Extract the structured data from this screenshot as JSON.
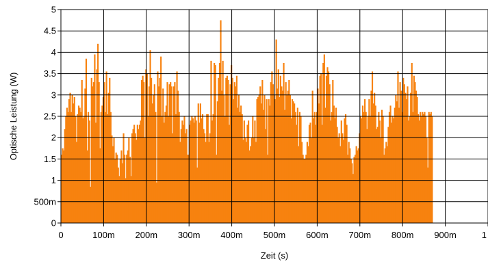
{
  "chart_data": {
    "type": "bar",
    "title": "",
    "xlabel": "Zeit (s)",
    "ylabel": "Optische Leistung (W)",
    "xlim": [
      0,
      1
    ],
    "ylim": [
      0,
      5
    ],
    "x_ticks": [
      {
        "value": 0,
        "label": "0"
      },
      {
        "value": 0.1,
        "label": "100m"
      },
      {
        "value": 0.2,
        "label": "200m"
      },
      {
        "value": 0.3,
        "label": "300m"
      },
      {
        "value": 0.4,
        "label": "400m"
      },
      {
        "value": 0.5,
        "label": "500m"
      },
      {
        "value": 0.6,
        "label": "600m"
      },
      {
        "value": 0.7,
        "label": "700m"
      },
      {
        "value": 0.8,
        "label": "800m"
      },
      {
        "value": 0.9,
        "label": "900m"
      },
      {
        "value": 1.0,
        "label": "1"
      }
    ],
    "y_ticks": [
      {
        "value": 0,
        "label": "0"
      },
      {
        "value": 0.5,
        "label": "500m"
      },
      {
        "value": 1,
        "label": "1"
      },
      {
        "value": 1.5,
        "label": "1.5"
      },
      {
        "value": 2,
        "label": "2"
      },
      {
        "value": 2.5,
        "label": "2.5"
      },
      {
        "value": 3,
        "label": "3"
      },
      {
        "value": 3.5,
        "label": "3.5"
      },
      {
        "value": 4,
        "label": "4"
      },
      {
        "value": 4.5,
        "label": "4.5"
      },
      {
        "value": 5,
        "label": "5"
      }
    ],
    "grid": true,
    "bar_color": "#f7820f",
    "grid_color": "#000000",
    "x_step": 0.0025,
    "values": [
      1.6,
      1.75,
      1.7,
      2.2,
      2.5,
      2.7,
      2.6,
      2.9,
      3.05,
      2.6,
      3.0,
      2.8,
      2.95,
      2.5,
      1.9,
      2.55,
      2.75,
      2.7,
      2.6,
      3.35,
      2.45,
      2.5,
      3.15,
      3.85,
      1.7,
      2.6,
      2.4,
      0.85,
      3.4,
      3.2,
      3.3,
      3.95,
      2.35,
      3.6,
      4.2,
      3.3,
      1.75,
      2.6,
      2.75,
      2.95,
      3.3,
      2.6,
      3.55,
      2.55,
      3.05,
      3.4,
      2.6,
      2.05,
      1.8,
      2.0,
      1.5,
      1.65,
      1.6,
      1.3,
      1.1,
      1.5,
      1.7,
      1.4,
      2.1,
      1.6,
      1.05,
      1.6,
      1.7,
      2.0,
      1.55,
      1.1,
      2.1,
      2.2,
      2.3,
      2.1,
      1.95,
      2.3,
      2.2,
      2.3,
      2.4,
      3.35,
      3.45,
      3.3,
      2.0,
      3.6,
      3.5,
      2.5,
      3.2,
      4.05,
      3.4,
      2.8,
      3.0,
      3.25,
      2.6,
      0.95,
      3.55,
      3.2,
      3.4,
      3.9,
      2.5,
      3.15,
      2.35,
      2.6,
      2.75,
      3.3,
      2.5,
      3.25,
      3.3,
      3.2,
      2.1,
      3.2,
      3.3,
      2.55,
      3.55,
      3.1,
      2.6,
      1.9,
      2.2,
      2.4,
      2.3,
      2.5,
      2.1,
      2.2,
      1.6,
      1.6,
      2.3,
      2.4,
      2.5,
      2.45,
      2.35,
      2.5,
      2.4,
      1.3,
      2.8,
      2.35,
      2.8,
      2.45,
      2.55,
      2.2,
      2.1,
      1.9,
      2.55,
      2.55,
      1.9,
      2.1,
      3.8,
      2.4,
      2.55,
      3.75,
      3.7,
      1.6,
      2.85,
      3.4,
      3.75,
      4.75,
      3.1,
      3.8,
      3.0,
      2.5,
      3.4,
      3.45,
      3.35,
      2.3,
      3.25,
      3.7,
      3.4,
      2.9,
      3.3,
      3.2,
      3.45,
      2.7,
      3.0,
      2.6,
      2.75,
      2.55,
      1.95,
      2.4,
      2.0,
      1.9,
      2.3,
      2.4,
      1.7,
      1.8,
      2.0,
      2.5,
      2.0,
      2.4,
      1.9,
      2.9,
      2.95,
      3.0,
      3.2,
      2.8,
      3.35,
      2.65,
      3.0,
      2.2,
      2.9,
      1.6,
      2.9,
      2.75,
      3.3,
      3.55,
      3.25,
      3.0,
      2.9,
      4.3,
      3.15,
      3.6,
      2.95,
      3.45,
      3.2,
      3.1,
      3.75,
      2.65,
      3.3,
      3.0,
      3.1,
      3.35,
      3.0,
      2.45,
      2.9,
      2.85,
      2.8,
      2.6,
      2.3,
      2.7,
      1.8,
      2.6,
      2.5,
      1.9,
      1.6,
      1.5,
      1.5,
      1.6,
      1.9,
      1.8,
      2.3,
      2.35,
      2.0,
      3.1,
      2.45,
      2.6,
      2.3,
      2.6,
      3.15,
      2.8,
      3.45,
      3.5,
      2.3,
      3.75,
      3.95,
      2.7,
      3.45,
      3.65,
      3.55,
      3.25,
      2.4,
      2.6,
      3.35,
      2.75,
      2.45,
      2.7,
      2.25,
      2.0,
      2.1,
      1.8,
      2.4,
      2.1,
      1.95,
      2.45,
      2.55,
      2.3,
      1.6,
      1.9,
      1.75,
      1.5,
      1.4,
      1.15,
      1.55,
      1.6,
      1.8,
      1.7,
      1.75,
      2.1,
      2.5,
      2.45,
      2.75,
      2.6,
      2.9,
      2.6,
      2.2,
      2.5,
      2.9,
      2.5,
      3.1,
      3.55,
      2.8,
      3.05,
      2.75,
      2.2,
      2.25,
      2.6,
      2.4,
      2.0,
      2.65,
      2.5,
      1.6,
      1.75,
      1.9,
      1.8,
      2.25,
      2.6,
      2.75,
      2.35,
      2.5,
      2.45,
      2.7,
      3.0,
      2.85,
      3.55,
      2.7,
      3.3,
      3.1,
      2.6,
      3.4,
      3.25,
      3.05,
      2.9,
      3.2,
      2.4,
      2.5,
      3.05,
      3.75,
      2.6,
      3.45,
      3.3,
      3.1,
      2.95,
      2.55,
      2.4,
      2.6,
      2.5,
      2.6,
      2.55,
      2.6,
      2.5,
      2.0,
      1.3,
      2.6,
      2.55,
      2.6,
      2.5
    ]
  }
}
